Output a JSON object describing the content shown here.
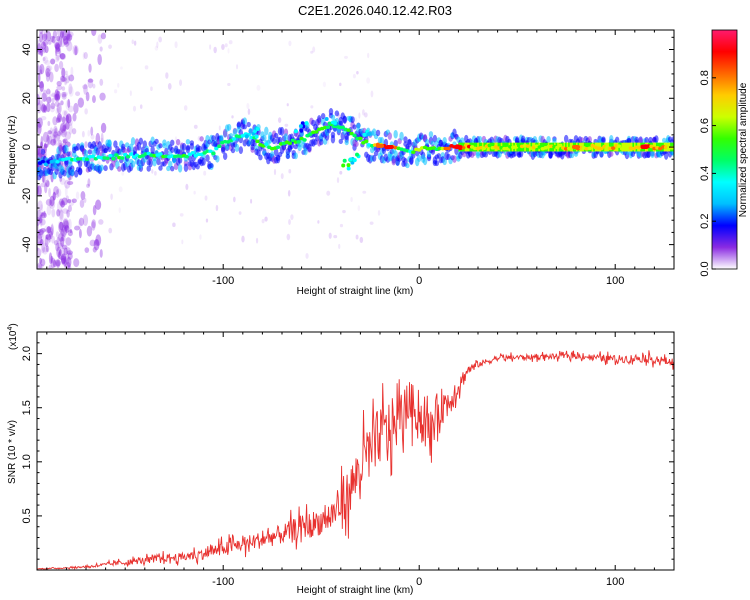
{
  "title": "C2E1.2026.040.12.42.R03",
  "colors": {
    "snr_line": "#e8312e",
    "bg_scatter": "#8a2be2"
  },
  "chart_data": [
    {
      "type": "heatmap",
      "name": "spectrogram",
      "xlabel": "Height of straight line (km)",
      "ylabel": "Frequency (Hz)",
      "xlim": [
        -195,
        130
      ],
      "ylim": [
        -50,
        48
      ],
      "xticks": [
        -100,
        0,
        100
      ],
      "yticks": [
        -40,
        -20,
        0,
        20,
        40
      ],
      "colorbar": {
        "label": "Normalized spectral amplitude",
        "range": [
          0,
          1
        ],
        "ticks": [
          0.0,
          0.2,
          0.4,
          0.6,
          0.8
        ],
        "tick_labels": [
          "0.0",
          "0.2",
          "0.4",
          "0.6",
          "0.8"
        ],
        "colormap": [
          "#ffffff",
          "#8a2be2",
          "#0000ff",
          "#00bfff",
          "#00ffff",
          "#00ff66",
          "#33ff00",
          "#ccff00",
          "#ffcc00",
          "#ff6600",
          "#ff0000",
          "#ff1a6e"
        ]
      },
      "ridge": [
        {
          "x": -195,
          "f": -7,
          "a": 0.15
        },
        {
          "x": -185,
          "f": -6,
          "a": 0.35
        },
        {
          "x": -175,
          "f": -5,
          "a": 0.45
        },
        {
          "x": -165,
          "f": -4.5,
          "a": 0.48
        },
        {
          "x": -155,
          "f": -4,
          "a": 0.5
        },
        {
          "x": -145,
          "f": -3.5,
          "a": 0.45
        },
        {
          "x": -135,
          "f": -3,
          "a": 0.48
        },
        {
          "x": -125,
          "f": -3.5,
          "a": 0.5
        },
        {
          "x": -115,
          "f": -3,
          "a": 0.45
        },
        {
          "x": -105,
          "f": -2,
          "a": 0.45
        },
        {
          "x": -100,
          "f": 2,
          "a": 0.5
        },
        {
          "x": -95,
          "f": 3,
          "a": 0.45
        },
        {
          "x": -90,
          "f": 5,
          "a": 0.4
        },
        {
          "x": -85,
          "f": 4,
          "a": 0.45
        },
        {
          "x": -80,
          "f": 1,
          "a": 0.48
        },
        {
          "x": -75,
          "f": 0,
          "a": 0.5
        },
        {
          "x": -70,
          "f": 1,
          "a": 0.5
        },
        {
          "x": -65,
          "f": 2,
          "a": 0.55
        },
        {
          "x": -60,
          "f": 3,
          "a": 0.55
        },
        {
          "x": -55,
          "f": 5,
          "a": 0.55
        },
        {
          "x": -50,
          "f": 7,
          "a": 0.55
        },
        {
          "x": -45,
          "f": 9,
          "a": 0.55
        },
        {
          "x": -40,
          "f": 8,
          "a": 0.5
        },
        {
          "x": -35,
          "f": 6,
          "a": 0.5
        },
        {
          "x": -30,
          "f": 3,
          "a": 0.55
        },
        {
          "x": -25,
          "f": 1,
          "a": 0.5
        },
        {
          "x": -20,
          "f": 0.5,
          "a": 0.85
        },
        {
          "x": -15,
          "f": 0,
          "a": 0.95
        },
        {
          "x": -10,
          "f": -1,
          "a": 0.55
        },
        {
          "x": -5,
          "f": -2,
          "a": 0.5
        },
        {
          "x": 0,
          "f": -1,
          "a": 0.6
        },
        {
          "x": 5,
          "f": 0,
          "a": 0.7
        },
        {
          "x": 10,
          "f": -1,
          "a": 0.6
        },
        {
          "x": 15,
          "f": 0,
          "a": 0.8
        },
        {
          "x": 20,
          "f": 0,
          "a": 0.95
        },
        {
          "x": 30,
          "f": 0,
          "a": 0.75
        },
        {
          "x": 45,
          "f": 0,
          "a": 0.7
        },
        {
          "x": 60,
          "f": 0,
          "a": 0.7
        },
        {
          "x": 80,
          "f": 0,
          "a": 0.85
        },
        {
          "x": 100,
          "f": 0,
          "a": 0.75
        },
        {
          "x": 115,
          "f": 0,
          "a": 0.9
        },
        {
          "x": 130,
          "f": 0,
          "a": 0.8
        }
      ],
      "offridge_features": [
        {
          "x": -36,
          "f": -7,
          "a": 0.5
        },
        {
          "x": -32,
          "f": -4,
          "a": 0.45
        },
        {
          "x": -45,
          "f": 10,
          "a": 0.4
        },
        {
          "x": -60,
          "f": 8,
          "a": 0.35
        },
        {
          "x": -85,
          "f": 6,
          "a": 0.4
        },
        {
          "x": -28,
          "f": 7,
          "a": 0.35
        }
      ],
      "noise_region": {
        "x_from": -195,
        "x_to": -160,
        "f_from": -50,
        "f_to": 48
      }
    },
    {
      "type": "line",
      "name": "snr",
      "xlabel": "Height of straight line (km)",
      "ylabel": "SNR (10 * v/v)",
      "scale_label": "(x10",
      "scale_exponent": "4",
      "xlim": [
        -195,
        130
      ],
      "ylim": [
        0,
        2.2
      ],
      "xticks": [
        -100,
        0,
        100
      ],
      "yticks": [
        0.5,
        1.0,
        1.5,
        2.0
      ],
      "ytick_labels": [
        "0.5",
        "1.0",
        "1.5",
        "2.0"
      ],
      "series": [
        {
          "name": "SNR",
          "x": [
            -195,
            -180,
            -170,
            -160,
            -150,
            -140,
            -130,
            -120,
            -110,
            -100,
            -90,
            -80,
            -70,
            -60,
            -50,
            -45,
            -40,
            -35,
            -30,
            -25,
            -20,
            -15,
            -10,
            -5,
            0,
            5,
            10,
            15,
            20,
            25,
            30,
            40,
            60,
            80,
            100,
            115,
            130
          ],
          "y": [
            0.01,
            0.02,
            0.03,
            0.05,
            0.07,
            0.09,
            0.11,
            0.12,
            0.15,
            0.2,
            0.24,
            0.28,
            0.33,
            0.4,
            0.45,
            0.5,
            0.6,
            0.75,
            0.95,
            1.1,
            1.25,
            1.3,
            1.4,
            1.55,
            1.45,
            1.25,
            1.5,
            1.55,
            1.7,
            1.85,
            1.9,
            1.96,
            1.97,
            1.98,
            1.95,
            1.96,
            1.92
          ],
          "noise_amplitude": [
            0.005,
            0.01,
            0.02,
            0.03,
            0.05,
            0.06,
            0.07,
            0.08,
            0.1,
            0.12,
            0.14,
            0.16,
            0.18,
            0.22,
            0.25,
            0.3,
            0.35,
            0.45,
            0.5,
            0.5,
            0.55,
            0.55,
            0.45,
            0.4,
            0.4,
            0.4,
            0.35,
            0.3,
            0.2,
            0.1,
            0.06,
            0.05,
            0.05,
            0.05,
            0.07,
            0.08,
            0.07
          ]
        }
      ]
    }
  ]
}
